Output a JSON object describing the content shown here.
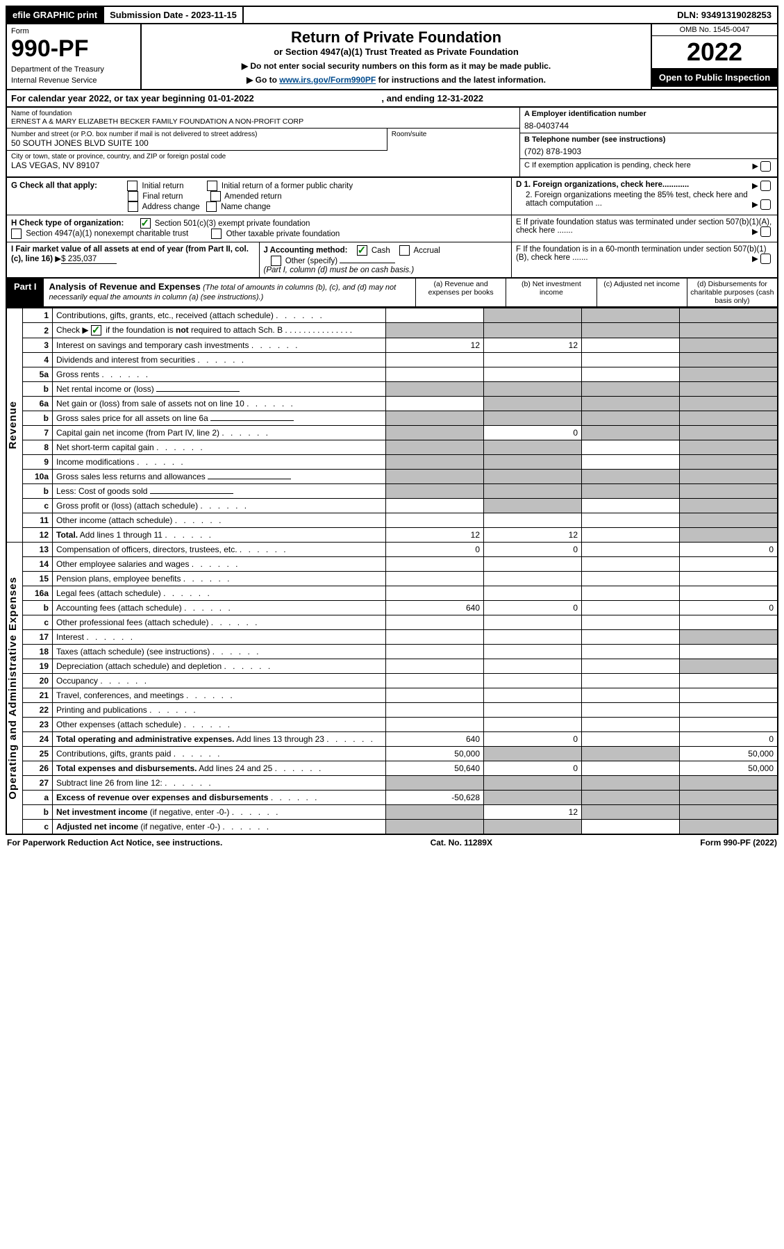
{
  "top_bar": {
    "efile": "efile GRAPHIC print",
    "submission": "Submission Date - 2023-11-15",
    "dln": "DLN: 93491319028253"
  },
  "header": {
    "form_label": "Form",
    "form_number": "990-PF",
    "dept1": "Department of the Treasury",
    "dept2": "Internal Revenue Service",
    "title": "Return of Private Foundation",
    "subtitle": "or Section 4947(a)(1) Trust Treated as Private Foundation",
    "instr1": "▶ Do not enter social security numbers on this form as it may be made public.",
    "instr2_pre": "▶ Go to ",
    "instr2_link": "www.irs.gov/Form990PF",
    "instr2_post": " for instructions and the latest information.",
    "omb": "OMB No. 1545-0047",
    "year": "2022",
    "open_pub": "Open to Public Inspection"
  },
  "cal_year": {
    "pre": "For calendar year 2022, or tax year beginning ",
    "begin": "01-01-2022",
    "mid": " , and ending ",
    "end": "12-31-2022"
  },
  "ident": {
    "name_lbl": "Name of foundation",
    "name": "ERNEST A & MARY ELIZABETH BECKER FAMILY FOUNDATION A NON-PROFIT CORP",
    "addr_lbl": "Number and street (or P.O. box number if mail is not delivered to street address)",
    "addr": "50 SOUTH JONES BLVD SUITE 100",
    "room_lbl": "Room/suite",
    "city_lbl": "City or town, state or province, country, and ZIP or foreign postal code",
    "city": "LAS VEGAS, NV  89107",
    "ein_lbl": "A Employer identification number",
    "ein": "88-0403744",
    "phone_lbl": "B Telephone number (see instructions)",
    "phone": "(702) 878-1903",
    "c_lbl": "C If exemption application is pending, check here",
    "d1_lbl": "D 1. Foreign organizations, check here............",
    "d2_lbl": "2. Foreign organizations meeting the 85% test, check here and attach computation ...",
    "e_lbl": "E  If private foundation status was terminated under section 507(b)(1)(A), check here .......",
    "f_lbl": "F  If the foundation is in a 60-month termination under section 507(b)(1)(B), check here ......."
  },
  "g": {
    "lbl": "G Check all that apply:",
    "opts": [
      "Initial return",
      "Initial return of a former public charity",
      "Final return",
      "Amended return",
      "Address change",
      "Name change"
    ]
  },
  "h": {
    "lbl": "H Check type of organization:",
    "opt1": "Section 501(c)(3) exempt private foundation",
    "opt2": "Section 4947(a)(1) nonexempt charitable trust",
    "opt3": "Other taxable private foundation"
  },
  "i": {
    "lbl": "I Fair market value of all assets at end of year (from Part II, col. (c), line 16)",
    "val": "$  235,037"
  },
  "j": {
    "lbl": "J Accounting method:",
    "cash": "Cash",
    "accrual": "Accrual",
    "other": "Other (specify)",
    "note": "(Part I, column (d) must be on cash basis.)"
  },
  "part1": {
    "badge": "Part I",
    "title": "Analysis of Revenue and Expenses",
    "note": "(The total of amounts in columns (b), (c), and (d) may not necessarily equal the amounts in column (a) (see instructions).)",
    "col_a": "(a) Revenue and expenses per books",
    "col_b": "(b) Net investment income",
    "col_c": "(c) Adjusted net income",
    "col_d": "(d) Disbursements for charitable purposes (cash basis only)"
  },
  "side_labels": {
    "revenue": "Revenue",
    "opex": "Operating and Administrative Expenses"
  },
  "rows": [
    {
      "n": "1",
      "d": "Contributions, gifts, grants, etc., received (attach schedule)",
      "a": "",
      "b": "grey",
      "c": "grey",
      "dd": "grey"
    },
    {
      "n": "2",
      "d": "Check ▶ ☑ if the foundation is <b>not</b> required to attach Sch. B",
      "a": "grey",
      "b": "grey",
      "c": "grey",
      "dd": "grey",
      "check": true
    },
    {
      "n": "3",
      "d": "Interest on savings and temporary cash investments",
      "a": "12",
      "b": "12",
      "c": "",
      "dd": "grey"
    },
    {
      "n": "4",
      "d": "Dividends and interest from securities",
      "a": "",
      "b": "",
      "c": "",
      "dd": "grey"
    },
    {
      "n": "5a",
      "d": "Gross rents",
      "a": "",
      "b": "",
      "c": "",
      "dd": "grey"
    },
    {
      "n": "b",
      "d": "Net rental income or (loss)",
      "a": "grey",
      "b": "grey",
      "c": "grey",
      "dd": "grey",
      "inset": true
    },
    {
      "n": "6a",
      "d": "Net gain or (loss) from sale of assets not on line 10",
      "a": "",
      "b": "grey",
      "c": "grey",
      "dd": "grey"
    },
    {
      "n": "b",
      "d": "Gross sales price for all assets on line 6a",
      "a": "grey",
      "b": "grey",
      "c": "grey",
      "dd": "grey",
      "inset": true
    },
    {
      "n": "7",
      "d": "Capital gain net income (from Part IV, line 2)",
      "a": "grey",
      "b": "0",
      "c": "grey",
      "dd": "grey"
    },
    {
      "n": "8",
      "d": "Net short-term capital gain",
      "a": "grey",
      "b": "grey",
      "c": "",
      "dd": "grey"
    },
    {
      "n": "9",
      "d": "Income modifications",
      "a": "grey",
      "b": "grey",
      "c": "",
      "dd": "grey"
    },
    {
      "n": "10a",
      "d": "Gross sales less returns and allowances",
      "a": "grey",
      "b": "grey",
      "c": "grey",
      "dd": "grey",
      "inset": true
    },
    {
      "n": "b",
      "d": "Less: Cost of goods sold",
      "a": "grey",
      "b": "grey",
      "c": "grey",
      "dd": "grey",
      "inset": true
    },
    {
      "n": "c",
      "d": "Gross profit or (loss) (attach schedule)",
      "a": "",
      "b": "grey",
      "c": "",
      "dd": "grey"
    },
    {
      "n": "11",
      "d": "Other income (attach schedule)",
      "a": "",
      "b": "",
      "c": "",
      "dd": "grey"
    },
    {
      "n": "12",
      "d": "<b>Total.</b> Add lines 1 through 11",
      "a": "12",
      "b": "12",
      "c": "",
      "dd": "grey"
    },
    {
      "n": "13",
      "d": "Compensation of officers, directors, trustees, etc.",
      "a": "0",
      "b": "0",
      "c": "",
      "dd": "0"
    },
    {
      "n": "14",
      "d": "Other employee salaries and wages",
      "a": "",
      "b": "",
      "c": "",
      "dd": ""
    },
    {
      "n": "15",
      "d": "Pension plans, employee benefits",
      "a": "",
      "b": "",
      "c": "",
      "dd": ""
    },
    {
      "n": "16a",
      "d": "Legal fees (attach schedule)",
      "a": "",
      "b": "",
      "c": "",
      "dd": ""
    },
    {
      "n": "b",
      "d": "Accounting fees (attach schedule)",
      "a": "640",
      "b": "0",
      "c": "",
      "dd": "0"
    },
    {
      "n": "c",
      "d": "Other professional fees (attach schedule)",
      "a": "",
      "b": "",
      "c": "",
      "dd": ""
    },
    {
      "n": "17",
      "d": "Interest",
      "a": "",
      "b": "",
      "c": "",
      "dd": "grey"
    },
    {
      "n": "18",
      "d": "Taxes (attach schedule) (see instructions)",
      "a": "",
      "b": "",
      "c": "",
      "dd": ""
    },
    {
      "n": "19",
      "d": "Depreciation (attach schedule) and depletion",
      "a": "",
      "b": "",
      "c": "",
      "dd": "grey"
    },
    {
      "n": "20",
      "d": "Occupancy",
      "a": "",
      "b": "",
      "c": "",
      "dd": ""
    },
    {
      "n": "21",
      "d": "Travel, conferences, and meetings",
      "a": "",
      "b": "",
      "c": "",
      "dd": ""
    },
    {
      "n": "22",
      "d": "Printing and publications",
      "a": "",
      "b": "",
      "c": "",
      "dd": ""
    },
    {
      "n": "23",
      "d": "Other expenses (attach schedule)",
      "a": "",
      "b": "",
      "c": "",
      "dd": ""
    },
    {
      "n": "24",
      "d": "<b>Total operating and administrative expenses.</b> Add lines 13 through 23",
      "a": "640",
      "b": "0",
      "c": "",
      "dd": "0"
    },
    {
      "n": "25",
      "d": "Contributions, gifts, grants paid",
      "a": "50,000",
      "b": "grey",
      "c": "grey",
      "dd": "50,000"
    },
    {
      "n": "26",
      "d": "<b>Total expenses and disbursements.</b> Add lines 24 and 25",
      "a": "50,640",
      "b": "0",
      "c": "",
      "dd": "50,000"
    },
    {
      "n": "27",
      "d": "Subtract line 26 from line 12:",
      "a": "grey",
      "b": "grey",
      "c": "grey",
      "dd": "grey"
    },
    {
      "n": "a",
      "d": "<b>Excess of revenue over expenses and disbursements</b>",
      "a": "-50,628",
      "b": "grey",
      "c": "grey",
      "dd": "grey"
    },
    {
      "n": "b",
      "d": "<b>Net investment income</b> (if negative, enter -0-)",
      "a": "grey",
      "b": "12",
      "c": "grey",
      "dd": "grey"
    },
    {
      "n": "c",
      "d": "<b>Adjusted net income</b> (if negative, enter -0-)",
      "a": "grey",
      "b": "grey",
      "c": "",
      "dd": "grey"
    }
  ],
  "footer": {
    "left": "For Paperwork Reduction Act Notice, see instructions.",
    "mid": "Cat. No. 11289X",
    "right": "Form 990-PF (2022)"
  }
}
